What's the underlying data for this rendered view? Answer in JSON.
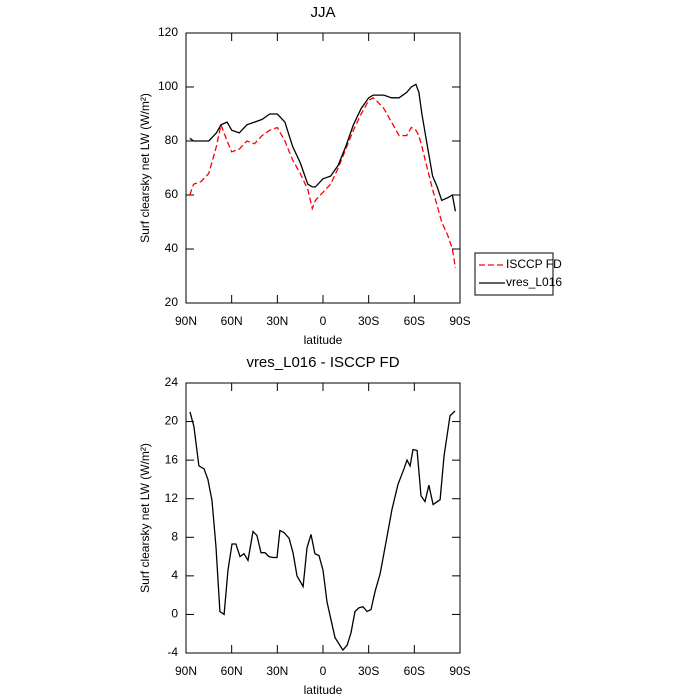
{
  "chart_data": [
    {
      "type": "line",
      "title": "JJA",
      "xlabel": "latitude",
      "ylabel": "Surf clearsky net LW (W/m²)",
      "x": [
        87.5,
        85,
        80,
        75,
        70,
        67,
        63,
        60,
        55,
        50,
        45,
        40,
        35,
        30,
        25,
        20,
        15,
        10,
        7,
        5,
        0,
        -5,
        -10,
        -15,
        -20,
        -25,
        -30,
        -33,
        -35,
        -40,
        -45,
        -50,
        -55,
        -58,
        -61,
        -63,
        -65,
        -68,
        -72,
        -75,
        -78,
        -82,
        -85,
        -87
      ],
      "series": [
        {
          "name": "ISCCP FD",
          "color": "#ff0000",
          "dash": true,
          "values": [
            60,
            64,
            65,
            68,
            78,
            86,
            80,
            76,
            77,
            80,
            79,
            82,
            84,
            85,
            80,
            73,
            68,
            62,
            55,
            58,
            61,
            64,
            70,
            77,
            84,
            90,
            95,
            96,
            95,
            92,
            87,
            82,
            82,
            85,
            84,
            82,
            78,
            71,
            62,
            56,
            50,
            45,
            40,
            33
          ]
        },
        {
          "name": "vres_L016",
          "color": "#000000",
          "dash": false,
          "values": [
            81,
            80,
            80,
            80,
            83,
            86,
            87,
            84,
            83,
            86,
            87,
            88,
            90,
            90,
            87,
            78,
            72,
            64,
            63,
            63,
            66,
            67,
            71,
            78,
            86,
            92,
            96,
            97,
            97,
            97,
            96,
            96,
            98,
            100,
            101,
            98,
            90,
            80,
            67,
            63,
            58,
            59,
            60,
            54
          ]
        }
      ],
      "xlim": [
        90,
        -90
      ],
      "xticks": [
        {
          "value": 90,
          "label": "90N"
        },
        {
          "value": 60,
          "label": "60N"
        },
        {
          "value": 30,
          "label": "30N"
        },
        0,
        {
          "value": -30,
          "label": "30S"
        },
        {
          "value": -60,
          "label": "60S"
        },
        {
          "value": -90,
          "label": "90S"
        }
      ],
      "ylim": [
        20,
        120
      ],
      "yticks": [
        20,
        40,
        60,
        80,
        100,
        120
      ],
      "legend": "right"
    },
    {
      "type": "line",
      "title": "vres_L016 - ISCCP FD",
      "xlabel": "latitude",
      "ylabel": "Surf clearsky net LW (W/m²)",
      "x": [
        87.4,
        84.8,
        81.5,
        78.2,
        75.6,
        72.9,
        70.3,
        67.7,
        65.0,
        62.4,
        59.8,
        57.2,
        54.5,
        51.9,
        49.3,
        46.0,
        43.4,
        40.7,
        38.1,
        35.5,
        32.9,
        30.2,
        28.3,
        25.6,
        22.3,
        19.7,
        17.1,
        13.1,
        10.5,
        7.9,
        5.3,
        2.6,
        0,
        -2.6,
        -5.3,
        -7.9,
        -13.1,
        -15.8,
        -18.4,
        -21,
        -23.7,
        -26.3,
        -28.9,
        -31.5,
        -34.2,
        -37.5,
        -41.4,
        -45.3,
        -49.3,
        -53.2,
        -55.2,
        -57.2,
        -59.1,
        -61.8,
        -64.4,
        -67,
        -69.6,
        -72.3,
        -76.9,
        -79.5,
        -83.4,
        -86.7
      ],
      "values": [
        21,
        19.5,
        15.4,
        15.1,
        14,
        11.8,
        7,
        0.3,
        0,
        4.6,
        7.3,
        7.3,
        6,
        6.3,
        5.6,
        8.6,
        8.2,
        6.4,
        6.4,
        6,
        5.9,
        5.9,
        8.7,
        8.5,
        7.9,
        6.4,
        4,
        2.9,
        6.9,
        8.3,
        6.3,
        6.1,
        4.6,
        1.3,
        -0.6,
        -2.4,
        -3.7,
        -3.2,
        -1.9,
        0.3,
        0.7,
        0.8,
        0.3,
        0.5,
        2.4,
        4.2,
        7.5,
        10.9,
        13.5,
        15.1,
        16,
        15.4,
        17.1,
        17,
        12.3,
        11.7,
        13.4,
        11.4,
        11.9,
        16.4,
        20.6,
        21.1
      ],
      "color": "#000000",
      "xlim": [
        90,
        -90
      ],
      "xticks": [
        {
          "value": 90,
          "label": "90N"
        },
        {
          "value": 60,
          "label": "60N"
        },
        {
          "value": 30,
          "label": "30N"
        },
        0,
        {
          "value": -30,
          "label": "30S"
        },
        {
          "value": -60,
          "label": "60S"
        },
        {
          "value": -90,
          "label": "90S"
        }
      ],
      "ylim": [
        -4,
        24
      ],
      "yticks": [
        -4,
        0,
        4,
        8,
        12,
        16,
        20,
        24
      ]
    }
  ]
}
